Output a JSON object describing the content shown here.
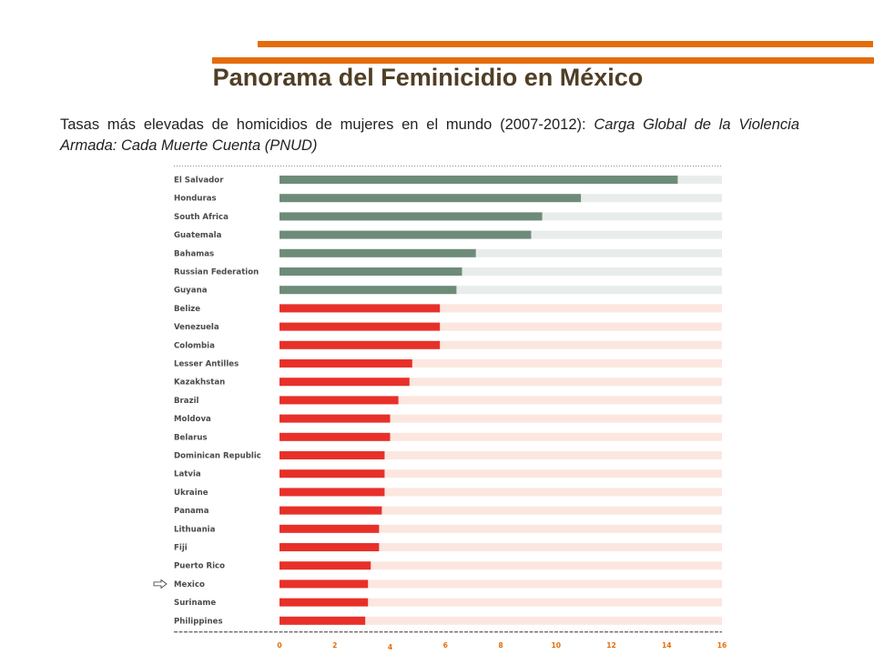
{
  "slide": {
    "title": "Panorama del Feminicidio en México",
    "subtitle_plain": "Tasas más elevadas de homicidios de mujeres en el mundo (2007-2012): ",
    "subtitle_italic": "Carga Global de la Violencia Armada: Cada Muerte Cuenta (PNUD)"
  },
  "colors": {
    "accent": "#e46c0a",
    "title": "#4f3f26",
    "bar_top": "#6e8b7a",
    "bar_top_track": "#e8edeb",
    "bar_rest": "#e8302a",
    "bar_rest_track": "#fbe7df"
  },
  "chart_data": {
    "type": "bar",
    "orientation": "horizontal",
    "categories": [
      "El Salvador",
      "Honduras",
      "South Africa",
      "Guatemala",
      "Bahamas",
      "Russian Federation",
      "Guyana",
      "Belize",
      "Venezuela",
      "Colombia",
      "Lesser Antilles",
      "Kazakhstan",
      "Brazil",
      "Moldova",
      "Belarus",
      "Dominican Republic",
      "Latvia",
      "Ukraine",
      "Panama",
      "Lithuania",
      "Fiji",
      "Puerto Rico",
      "Mexico",
      "Suriname",
      "Philippines"
    ],
    "values": [
      14.4,
      10.9,
      9.5,
      9.1,
      7.1,
      6.6,
      6.4,
      5.8,
      5.8,
      5.8,
      4.8,
      4.7,
      4.3,
      4.0,
      4.0,
      3.8,
      3.8,
      3.8,
      3.7,
      3.6,
      3.6,
      3.3,
      3.2,
      3.2,
      3.1
    ],
    "highlight_count": 7,
    "highlighted_category": "Mexico",
    "xlim": [
      0,
      16
    ],
    "xticks": [
      "0",
      "2",
      "4",
      "6",
      "8",
      "10",
      "12",
      "14",
      "16"
    ],
    "xlabel": "",
    "ylabel": ""
  }
}
